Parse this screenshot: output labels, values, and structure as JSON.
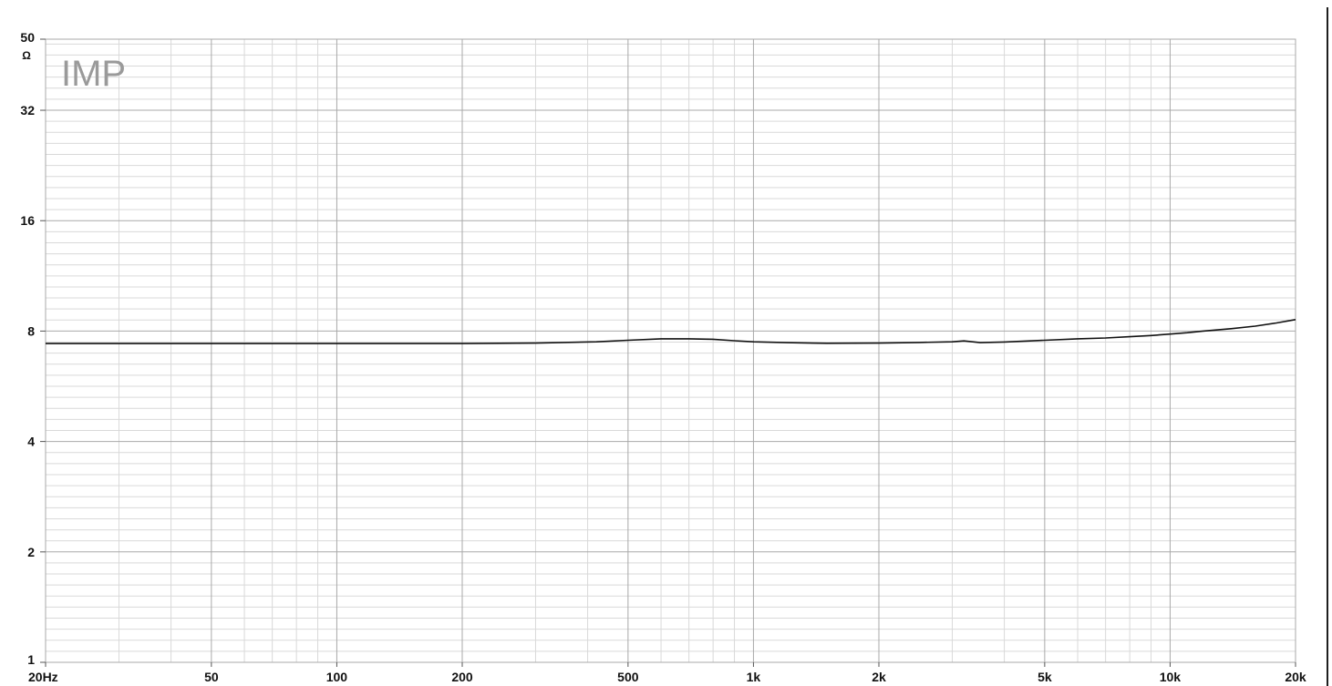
{
  "chart_data": {
    "type": "line",
    "title": "IMP",
    "xlabel": "",
    "ylabel": "",
    "y_unit": "Ω",
    "x_scale": "log",
    "y_scale": "log",
    "xlim": [
      20,
      20000
    ],
    "ylim": [
      1,
      50
    ],
    "x_ticks": [
      {
        "value": 20,
        "label": "20Hz"
      },
      {
        "value": 50,
        "label": "50"
      },
      {
        "value": 100,
        "label": "100"
      },
      {
        "value": 200,
        "label": "200"
      },
      {
        "value": 500,
        "label": "500"
      },
      {
        "value": 1000,
        "label": "1k"
      },
      {
        "value": 2000,
        "label": "2k"
      },
      {
        "value": 5000,
        "label": "5k"
      },
      {
        "value": 10000,
        "label": "10k"
      },
      {
        "value": 20000,
        "label": "20k"
      }
    ],
    "y_ticks": [
      {
        "value": 1,
        "label": "1"
      },
      {
        "value": 2,
        "label": "2"
      },
      {
        "value": 4,
        "label": "4"
      },
      {
        "value": 8,
        "label": "8"
      },
      {
        "value": 16,
        "label": "16"
      },
      {
        "value": 32,
        "label": "32"
      },
      {
        "value": 50,
        "label": "50"
      }
    ],
    "grid": true,
    "legend": "none",
    "line_color": "#111111",
    "grid_major_color": "#a9a9a9",
    "grid_minor_color": "#d9d9d9",
    "series": [
      {
        "x": [
          20,
          50,
          100,
          200,
          300,
          420,
          500,
          600,
          700,
          800,
          900,
          1000,
          1200,
          1500,
          2000,
          2500,
          3000,
          3200,
          3500,
          4000,
          5000,
          6000,
          7000,
          8000,
          9000,
          10000,
          11000,
          12000,
          14000,
          16000,
          18000,
          20000
        ],
        "values": [
          7.4,
          7.4,
          7.4,
          7.4,
          7.42,
          7.48,
          7.55,
          7.62,
          7.62,
          7.6,
          7.53,
          7.48,
          7.44,
          7.41,
          7.42,
          7.45,
          7.48,
          7.52,
          7.44,
          7.47,
          7.55,
          7.62,
          7.66,
          7.72,
          7.78,
          7.85,
          7.92,
          8.0,
          8.12,
          8.25,
          8.42,
          8.6
        ]
      }
    ]
  }
}
